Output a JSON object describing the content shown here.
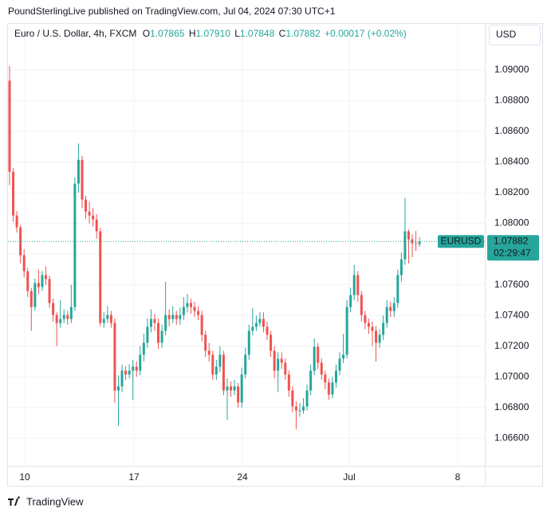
{
  "header": {
    "published": "PoundSterlingLive published on TradingView.com, Jul 04, 2024 07:30 UTC+1",
    "symbol": "Euro / U.S. Dollar, 4h, FXCM",
    "o_key": "O",
    "o": "1.07865",
    "h_key": "H",
    "h": "1.07910",
    "l_key": "L",
    "l": "1.07848",
    "c_key": "C",
    "c": "1.07882",
    "change": "+0.00017 (+0.02%)"
  },
  "currency": "USD",
  "price_tag": {
    "symbol": "EURUSD",
    "price": "1.07882",
    "countdown": "02:29:47"
  },
  "footer": {
    "brand": "TradingView"
  },
  "chart_data": {
    "type": "candlestick",
    "up_color": "#26a69a",
    "down_color": "#ef5350",
    "grid": true,
    "xlim": [
      -0.44,
      131.0
    ],
    "xticks": [
      {
        "value": 4.18,
        "label": "10"
      },
      {
        "value": 34.29,
        "label": "17"
      },
      {
        "value": 64.18,
        "label": "24"
      },
      {
        "value": 93.63,
        "label": "Jul"
      },
      {
        "value": 123.52,
        "label": "8"
      }
    ],
    "ylim": [
      1.0642,
      1.093
    ],
    "yticks": [
      {
        "value": 1.066,
        "label": "1.06600"
      },
      {
        "value": 1.068,
        "label": "1.06800"
      },
      {
        "value": 1.07,
        "label": "1.07000"
      },
      {
        "value": 1.072,
        "label": "1.07200"
      },
      {
        "value": 1.074,
        "label": "1.07400"
      },
      {
        "value": 1.076,
        "label": "1.07600"
      },
      {
        "value": 1.078,
        "label": "1.07800"
      },
      {
        "value": 1.08,
        "label": "1.08000"
      },
      {
        "value": 1.082,
        "label": "1.08200"
      },
      {
        "value": 1.084,
        "label": "1.08400"
      },
      {
        "value": 1.086,
        "label": "1.08600"
      },
      {
        "value": 1.088,
        "label": "1.08800"
      },
      {
        "value": 1.09,
        "label": "1.09000"
      }
    ],
    "open": [
      1.0893,
      1.08336,
      1.08051,
      1.07974,
      1.07792,
      1.07688,
      1.07559,
      1.07455,
      1.07611,
      1.07585,
      1.07663,
      1.07637,
      1.07481,
      1.07403,
      1.07351,
      1.07377,
      1.07403,
      1.07377,
      1.07455,
      1.08259,
      1.08414,
      1.08155,
      1.08077,
      1.08051,
      1.08025,
      1.07948,
      1.07351,
      1.07377,
      1.07403,
      1.07351,
      1.06911,
      1.06937,
      1.0704,
      1.07015,
      1.0704,
      1.07066,
      1.0704,
      1.07144,
      1.07222,
      1.07326,
      1.07377,
      1.07351,
      1.07222,
      1.073,
      1.07403,
      1.07377,
      1.07403,
      1.07377,
      1.07403,
      1.07455,
      1.07481,
      1.07455,
      1.07429,
      1.07403,
      1.07274,
      1.0717,
      1.07144,
      1.07015,
      1.07066,
      1.07144,
      1.06911,
      1.06937,
      1.06911,
      1.06937,
      1.06833,
      1.07015,
      1.07144,
      1.073,
      1.07326,
      1.07351,
      1.07377,
      1.07326,
      1.07274,
      1.0717,
      1.0704,
      1.07118,
      1.07092,
      1.07015,
      1.06911,
      1.06807,
      1.06781,
      1.06781,
      1.06807,
      1.06911,
      1.0704,
      1.07196,
      1.07092,
      1.07015,
      1.06963,
      1.06885,
      1.06963,
      1.0704,
      1.07118,
      1.07144,
      1.07455,
      1.07533,
      1.07663,
      1.07533,
      1.07403,
      1.07351,
      1.07326,
      1.073,
      1.07222,
      1.07274,
      1.07351,
      1.07455,
      1.07429,
      1.07481,
      1.07663,
      1.07766,
      1.07948,
      1.07896,
      1.0787,
      1.07865
    ],
    "high": [
      1.09025,
      1.0836,
      1.0808,
      1.0799,
      1.0783,
      1.0771,
      1.0758,
      1.0764,
      1.077,
      1.0769,
      1.0772,
      1.0766,
      1.0751,
      1.0742,
      1.075,
      1.0744,
      1.0743,
      1.076,
      1.083,
      1.0852,
      1.0844,
      1.0818,
      1.0814,
      1.081,
      1.0806,
      1.0797,
      1.0742,
      1.0746,
      1.0743,
      1.0738,
      1.0701,
      1.0708,
      1.0707,
      1.0708,
      1.0711,
      1.071,
      1.072,
      1.0728,
      1.0738,
      1.0744,
      1.0741,
      1.0738,
      1.0734,
      1.0762,
      1.0744,
      1.0746,
      1.0743,
      1.0745,
      1.0752,
      1.0754,
      1.0751,
      1.0749,
      1.0746,
      1.0743,
      1.073,
      1.0722,
      1.0717,
      1.0711,
      1.072,
      1.0717,
      1.0699,
      1.0697,
      1.0698,
      1.0696,
      1.0706,
      1.0719,
      1.0734,
      1.0745,
      1.074,
      1.0742,
      1.0742,
      1.0736,
      1.073,
      1.072,
      1.0716,
      1.0716,
      1.0712,
      1.0704,
      1.0694,
      1.0684,
      1.0683,
      1.0686,
      1.0695,
      1.0708,
      1.0725,
      1.0722,
      1.0712,
      1.0704,
      1.0699,
      1.07,
      1.0708,
      1.0716,
      1.0728,
      1.075,
      1.0758,
      1.0773,
      1.0769,
      1.0756,
      1.0743,
      1.0738,
      1.0736,
      1.0733,
      1.0731,
      1.074,
      1.075,
      1.0749,
      1.0752,
      1.077,
      1.0781,
      1.08165,
      1.0796,
      1.0793,
      1.0795,
      1.0791
    ],
    "low": [
      1.0825,
      1.0801,
      1.0794,
      1.0774,
      1.0765,
      1.0752,
      1.073,
      1.0743,
      1.0754,
      1.0756,
      1.076,
      1.0745,
      1.0736,
      1.072,
      1.0732,
      1.0735,
      1.0734,
      1.0735,
      1.0743,
      1.082,
      1.081,
      1.0803,
      1.08,
      1.0798,
      1.079,
      1.0733,
      1.0732,
      1.0735,
      1.0732,
      1.0683,
      1.0668,
      1.069,
      1.0698,
      1.0699,
      1.0685,
      1.07,
      1.0701,
      1.071,
      1.0719,
      1.0729,
      1.073,
      1.0718,
      1.0719,
      1.0727,
      1.0733,
      1.0735,
      1.0734,
      1.0734,
      1.0737,
      1.0742,
      1.0741,
      1.0739,
      1.0737,
      1.0723,
      1.0713,
      1.071,
      1.0698,
      1.0698,
      1.0703,
      1.0688,
      1.0672,
      1.0687,
      1.0688,
      1.068,
      1.068,
      1.0699,
      1.0711,
      1.0727,
      1.073,
      1.0733,
      1.0729,
      1.0724,
      1.0713,
      1.0699,
      1.069,
      1.0705,
      1.0698,
      1.0687,
      1.0677,
      1.0666,
      1.0674,
      1.0676,
      1.0678,
      1.0688,
      1.0701,
      1.0705,
      1.0698,
      1.0692,
      1.0685,
      1.0686,
      1.0693,
      1.0701,
      1.0709,
      1.0712,
      1.0742,
      1.075,
      1.0749,
      1.0736,
      1.0731,
      1.0728,
      1.072,
      1.071,
      1.0719,
      1.0724,
      1.0732,
      1.0739,
      1.0739,
      1.0745,
      1.0762,
      1.0773,
      1.0774,
      1.0778,
      1.0782,
      1.07848
    ],
    "close": [
      1.08336,
      1.08051,
      1.07974,
      1.07792,
      1.07688,
      1.07559,
      1.07455,
      1.07611,
      1.07585,
      1.07663,
      1.07637,
      1.07481,
      1.07403,
      1.07351,
      1.07377,
      1.07403,
      1.07377,
      1.07455,
      1.08259,
      1.08414,
      1.08155,
      1.08077,
      1.08051,
      1.08025,
      1.07948,
      1.07351,
      1.07377,
      1.07403,
      1.07351,
      1.06911,
      1.06937,
      1.0704,
      1.07015,
      1.0704,
      1.07066,
      1.0704,
      1.07144,
      1.07222,
      1.07326,
      1.07377,
      1.07351,
      1.07222,
      1.073,
      1.07403,
      1.07377,
      1.07403,
      1.07377,
      1.07403,
      1.07455,
      1.07481,
      1.07455,
      1.07429,
      1.07403,
      1.07274,
      1.0717,
      1.07144,
      1.07015,
      1.07066,
      1.07144,
      1.06911,
      1.06937,
      1.06911,
      1.06937,
      1.06833,
      1.07015,
      1.07144,
      1.073,
      1.07326,
      1.07351,
      1.07377,
      1.07326,
      1.07274,
      1.0717,
      1.0704,
      1.07118,
      1.07092,
      1.07015,
      1.06911,
      1.06807,
      1.06781,
      1.06781,
      1.06807,
      1.06911,
      1.0704,
      1.07196,
      1.07092,
      1.07015,
      1.06963,
      1.06885,
      1.06963,
      1.0704,
      1.07118,
      1.07144,
      1.07455,
      1.07533,
      1.07663,
      1.07533,
      1.07403,
      1.07351,
      1.07326,
      1.073,
      1.07222,
      1.07274,
      1.07351,
      1.07455,
      1.07429,
      1.07481,
      1.07663,
      1.07766,
      1.07948,
      1.07896,
      1.0787,
      1.07865,
      1.07882
    ]
  }
}
